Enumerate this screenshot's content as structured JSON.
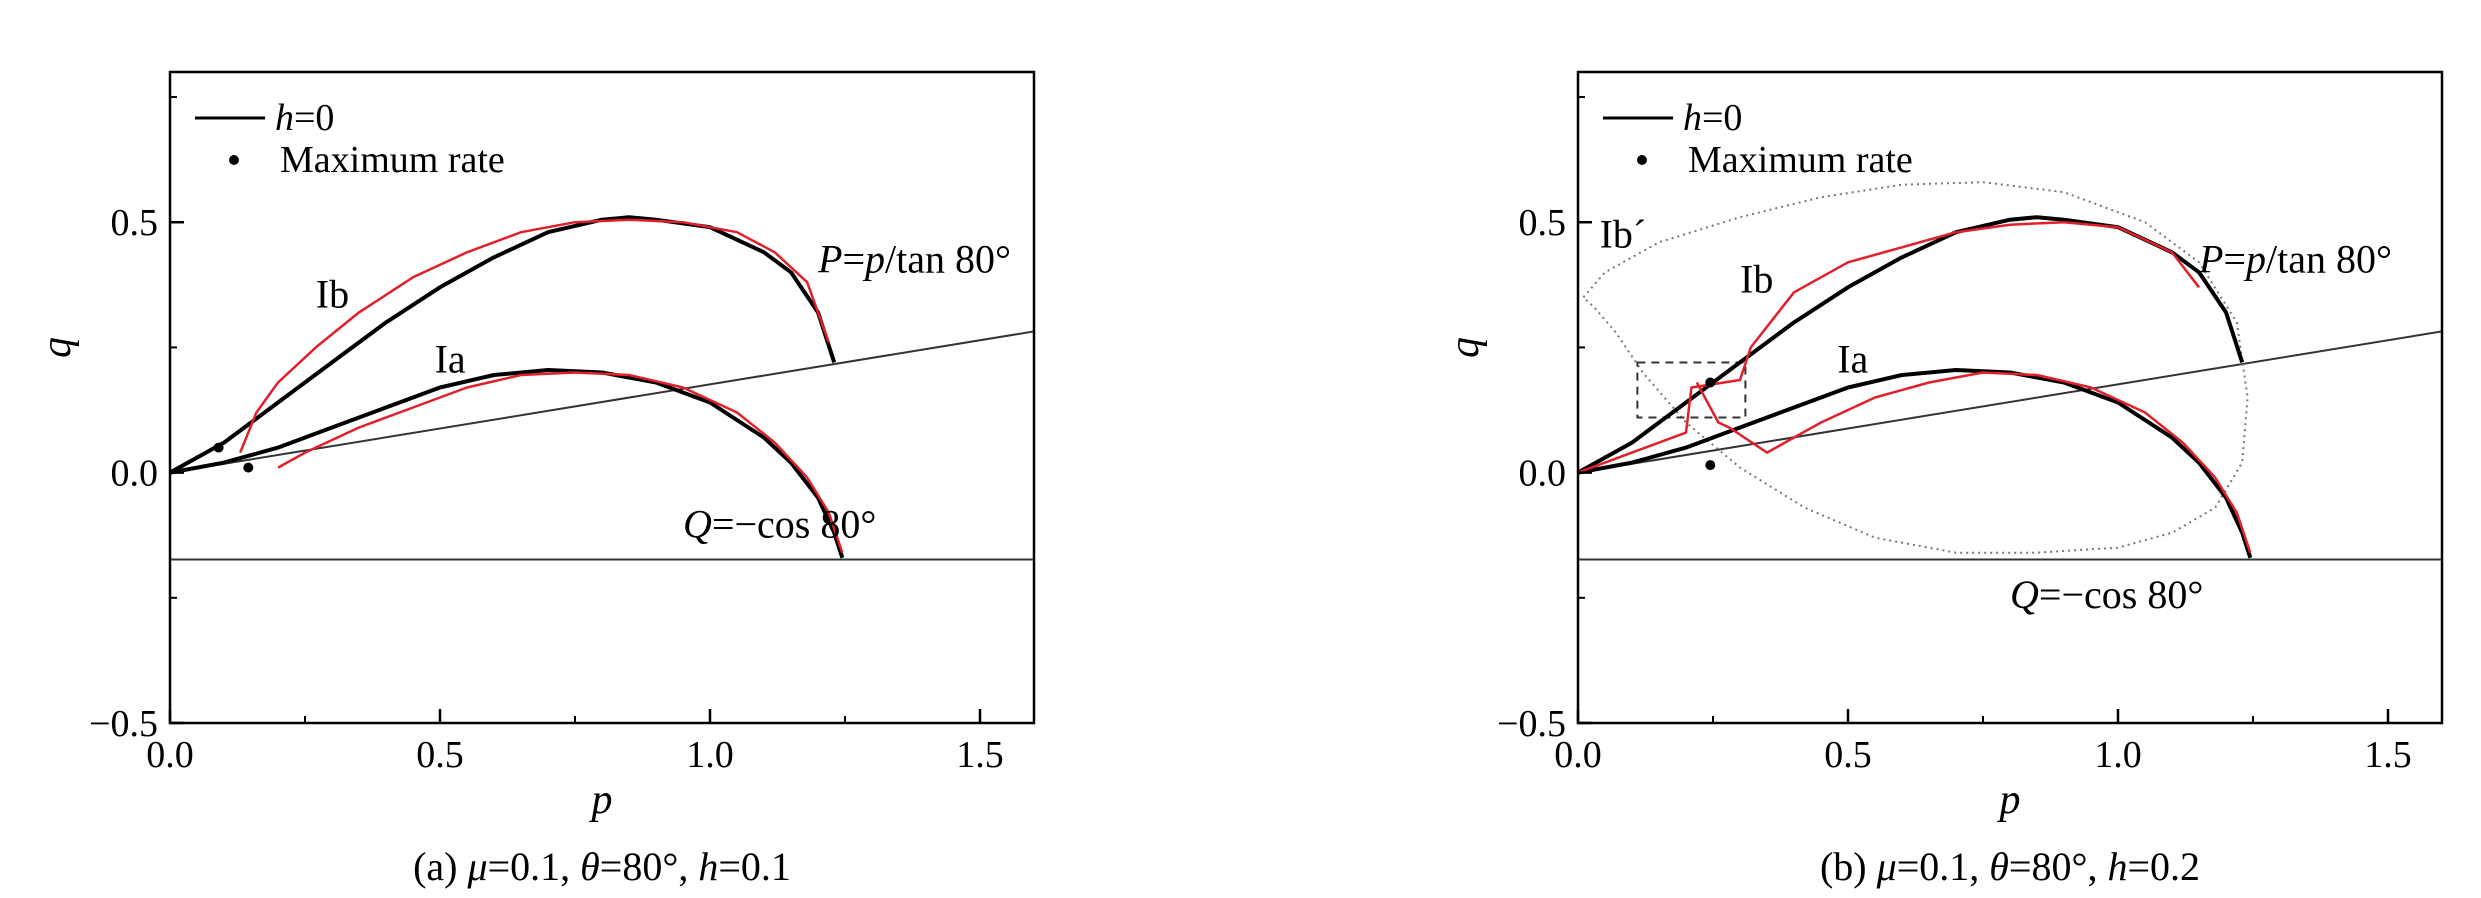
{
  "chart_data": [
    {
      "id": "a",
      "type": "line",
      "caption": {
        "prefix": "(a) ",
        "mu_sym": "μ",
        "mu_val": "=0.1, ",
        "theta_sym": "θ",
        "theta_val": "=80°, ",
        "h_sym": "h",
        "h_val": "=0.1"
      },
      "xlabel": "p",
      "ylabel": "q",
      "xlim": [
        0,
        1.6
      ],
      "ylim": [
        -0.5,
        0.8
      ],
      "xticks": [
        0,
        0.5,
        1.0,
        1.5
      ],
      "xtick_labels": [
        "0.0",
        "0.5",
        "1.0",
        "1.5"
      ],
      "yticks": [
        -0.5,
        0,
        0.5
      ],
      "ytick_labels": [
        "−0.5",
        "0.0",
        "0.5"
      ],
      "legend": {
        "placement": "top-left",
        "line_entry": {
          "sym": "h",
          "rest": "=0"
        },
        "point_entry": "Maximum rate"
      },
      "limit_lines": [
        {
          "name": "P-line",
          "x": [
            0,
            1.6
          ],
          "y": [
            0,
            0.282
          ]
        },
        {
          "name": "Q-line",
          "x": [
            0,
            1.6
          ],
          "y": [
            -0.1736,
            -0.1736
          ]
        }
      ],
      "labels": [
        {
          "name": "ib",
          "text": "Ib",
          "x": 0.27,
          "y": 0.33
        },
        {
          "name": "ia",
          "text": "Ia",
          "x": 0.49,
          "y": 0.2
        }
      ],
      "p_label": {
        "x": 1.2,
        "y": 0.4,
        "sym1": "P",
        "eq": "=",
        "sym2": "p",
        "rest": "/tan 80°"
      },
      "q_label": {
        "x": 0.95,
        "y": -0.13,
        "sym": "Q",
        "rest": "=−cos 80°"
      },
      "series": [
        {
          "style": "black",
          "x": [
            0,
            0.1,
            0.2,
            0.3,
            0.4,
            0.5,
            0.6,
            0.7,
            0.8,
            0.85,
            0.9,
            1.0,
            1.1,
            1.15,
            1.2,
            1.23
          ],
          "y": [
            0,
            0.06,
            0.14,
            0.22,
            0.3,
            0.37,
            0.43,
            0.48,
            0.505,
            0.51,
            0.505,
            0.49,
            0.44,
            0.4,
            0.32,
            0.22
          ]
        },
        {
          "style": "black",
          "x": [
            0,
            0.1,
            0.2,
            0.3,
            0.4,
            0.5,
            0.6,
            0.7,
            0.8,
            0.9,
            1.0,
            1.1,
            1.15,
            1.2,
            1.23,
            1.245
          ],
          "y": [
            0,
            0.02,
            0.05,
            0.09,
            0.13,
            0.17,
            0.195,
            0.205,
            0.2,
            0.18,
            0.14,
            0.07,
            0.02,
            -0.05,
            -0.12,
            -0.17
          ]
        },
        {
          "style": "red",
          "x": [
            0.13,
            0.16,
            0.2,
            0.27,
            0.35,
            0.45,
            0.55,
            0.65,
            0.75,
            0.85,
            0.95,
            1.05,
            1.12,
            1.18,
            1.22
          ],
          "y": [
            0.04,
            0.12,
            0.18,
            0.25,
            0.32,
            0.39,
            0.44,
            0.48,
            0.5,
            0.505,
            0.5,
            0.48,
            0.44,
            0.38,
            0.26
          ]
        },
        {
          "style": "red",
          "x": [
            0.2,
            0.25,
            0.35,
            0.45,
            0.55,
            0.65,
            0.75,
            0.85,
            0.95,
            1.05,
            1.12,
            1.18,
            1.22,
            1.245
          ],
          "y": [
            0.01,
            0.04,
            0.09,
            0.13,
            0.17,
            0.195,
            0.2,
            0.195,
            0.17,
            0.12,
            0.06,
            -0.01,
            -0.08,
            -0.16
          ]
        }
      ],
      "max_rate_points": [
        {
          "x": 0.09,
          "y": 0.05
        },
        {
          "x": 0.145,
          "y": 0.01
        }
      ]
    },
    {
      "id": "b",
      "type": "line",
      "caption": {
        "prefix": "(b) ",
        "mu_sym": "μ",
        "mu_val": "=0.1, ",
        "theta_sym": "θ",
        "theta_val": "=80°, ",
        "h_sym": "h",
        "h_val": "=0.2"
      },
      "xlabel": "p",
      "ylabel": "q",
      "xlim": [
        0,
        1.6
      ],
      "ylim": [
        -0.5,
        0.8
      ],
      "xticks": [
        0,
        0.5,
        1.0,
        1.5
      ],
      "xtick_labels": [
        "0.0",
        "0.5",
        "1.0",
        "1.5"
      ],
      "yticks": [
        -0.5,
        0,
        0.5
      ],
      "ytick_labels": [
        "−0.5",
        "0.0",
        "0.5"
      ],
      "legend": {
        "placement": "top-left",
        "line_entry": {
          "sym": "h",
          "rest": "=0"
        },
        "point_entry": "Maximum rate"
      },
      "limit_lines": [
        {
          "name": "P-line",
          "x": [
            0,
            1.6
          ],
          "y": [
            0,
            0.282
          ]
        },
        {
          "name": "Q-line",
          "x": [
            0,
            1.6
          ],
          "y": [
            -0.1736,
            -0.1736
          ]
        }
      ],
      "labels": [
        {
          "name": "ib-prime",
          "text": "Ib´",
          "x": 0.04,
          "y": 0.45
        },
        {
          "name": "ib",
          "text": "Ib",
          "x": 0.3,
          "y": 0.36
        },
        {
          "name": "ia",
          "text": "Ia",
          "x": 0.48,
          "y": 0.2
        }
      ],
      "p_label": {
        "x": 1.15,
        "y": 0.4,
        "sym1": "P",
        "eq": "=",
        "sym2": "p",
        "rest": "/tan 80°"
      },
      "q_label": {
        "x": 0.8,
        "y": -0.27,
        "sym": "Q",
        "rest": "=−cos 80°"
      },
      "dotted_curve": {
        "x": [
          0.01,
          0.05,
          0.15,
          0.3,
          0.45,
          0.6,
          0.75,
          0.9,
          1.05,
          1.15,
          1.22,
          1.24,
          1.23,
          1.18,
          1.1,
          1.0,
          0.85,
          0.7,
          0.55,
          0.42,
          0.3,
          0.2,
          0.12,
          0.07,
          0.03,
          0.01
        ],
        "y": [
          0.35,
          0.4,
          0.46,
          0.51,
          0.55,
          0.575,
          0.58,
          0.56,
          0.5,
          0.42,
          0.3,
          0.15,
          0.02,
          -0.07,
          -0.12,
          -0.15,
          -0.16,
          -0.16,
          -0.13,
          -0.07,
          0.01,
          0.1,
          0.2,
          0.28,
          0.33,
          0.35
        ]
      },
      "inset_box": {
        "x": [
          0.11,
          0.31
        ],
        "y": [
          0.11,
          0.22
        ]
      },
      "series": [
        {
          "style": "black",
          "x": [
            0,
            0.1,
            0.2,
            0.3,
            0.4,
            0.5,
            0.6,
            0.7,
            0.8,
            0.85,
            0.9,
            1.0,
            1.1,
            1.15,
            1.2,
            1.23
          ],
          "y": [
            0,
            0.06,
            0.14,
            0.22,
            0.3,
            0.37,
            0.43,
            0.48,
            0.505,
            0.51,
            0.505,
            0.49,
            0.44,
            0.4,
            0.32,
            0.22
          ]
        },
        {
          "style": "black",
          "x": [
            0,
            0.1,
            0.2,
            0.3,
            0.4,
            0.5,
            0.6,
            0.7,
            0.8,
            0.9,
            1.0,
            1.1,
            1.15,
            1.2,
            1.23,
            1.245
          ],
          "y": [
            0,
            0.02,
            0.05,
            0.09,
            0.13,
            0.17,
            0.195,
            0.205,
            0.2,
            0.18,
            0.14,
            0.07,
            0.02,
            -0.05,
            -0.12,
            -0.17
          ]
        },
        {
          "style": "red",
          "x": [
            0.0,
            0.1,
            0.2,
            0.21,
            0.3,
            0.32,
            0.4,
            0.5,
            0.6,
            0.7,
            0.8,
            0.9,
            1.0,
            1.1,
            1.15
          ],
          "y": [
            0.0,
            0.04,
            0.08,
            0.17,
            0.185,
            0.25,
            0.36,
            0.42,
            0.45,
            0.48,
            0.495,
            0.5,
            0.49,
            0.44,
            0.37
          ]
        },
        {
          "style": "red",
          "x": [
            0.22,
            0.24,
            0.26,
            0.28,
            0.35,
            0.45,
            0.55,
            0.65,
            0.75,
            0.85,
            0.95,
            1.05,
            1.12,
            1.18,
            1.22,
            1.245
          ],
          "y": [
            0.18,
            0.14,
            0.1,
            0.09,
            0.04,
            0.1,
            0.15,
            0.18,
            0.2,
            0.195,
            0.17,
            0.12,
            0.06,
            -0.01,
            -0.08,
            -0.16
          ]
        }
      ],
      "max_rate_points": [
        {
          "x": 0.245,
          "y": 0.18
        },
        {
          "x": 0.245,
          "y": 0.015
        }
      ]
    }
  ]
}
